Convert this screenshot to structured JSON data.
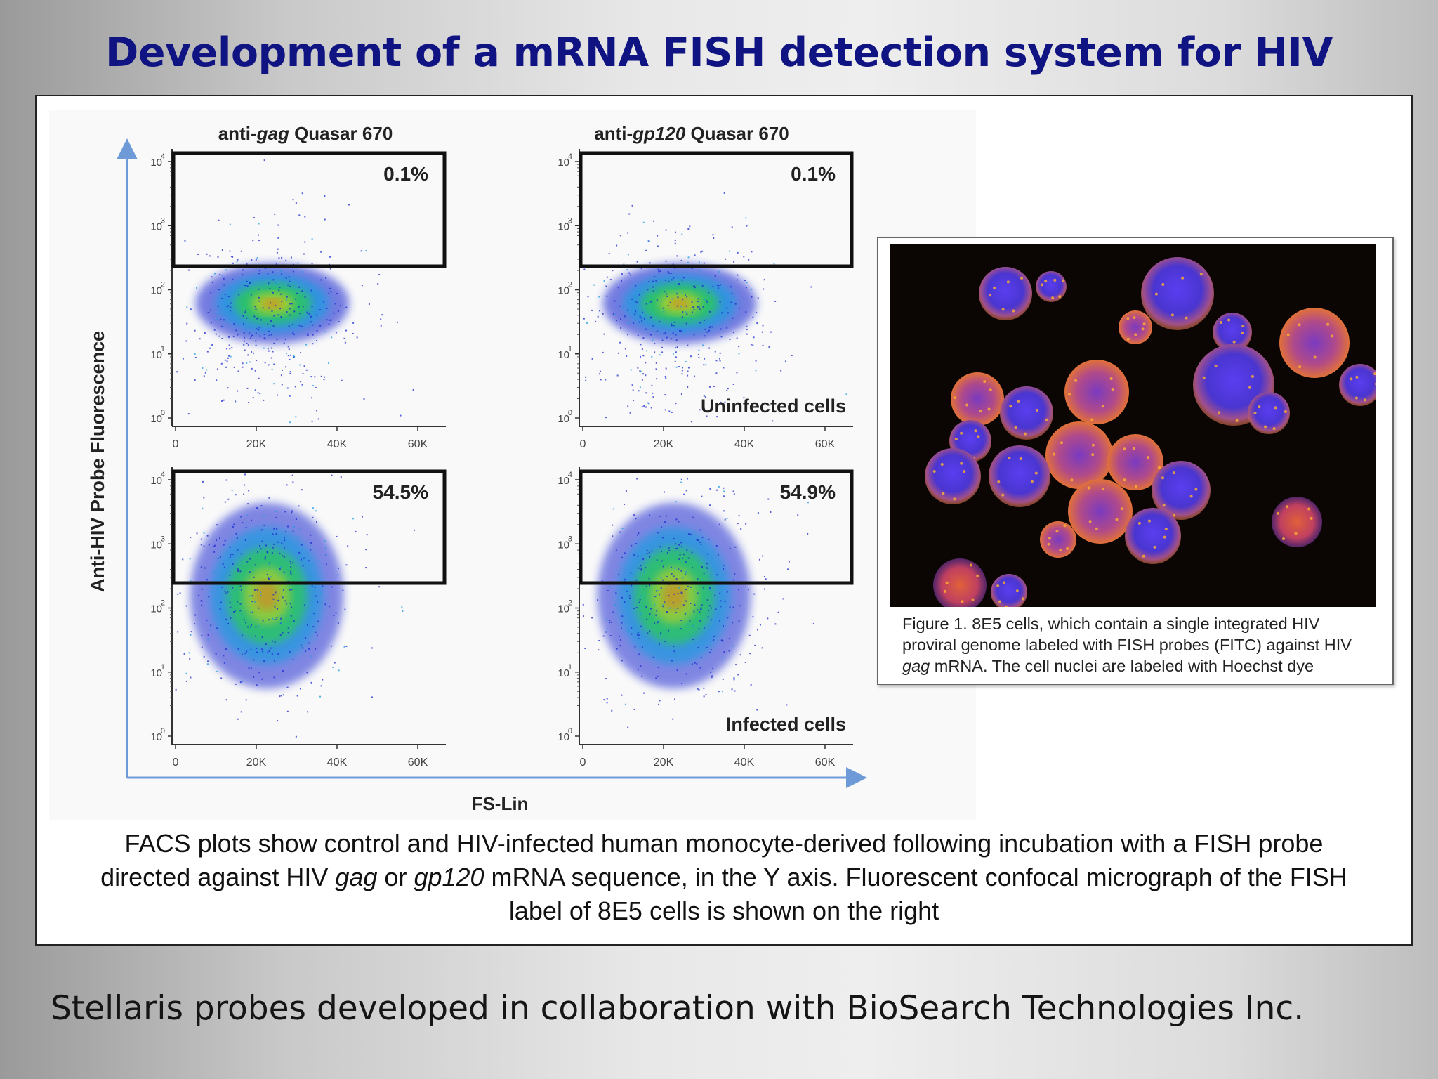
{
  "slide": {
    "title": "Development of a mRNA FISH detection system for HIV",
    "footer": "Stellaris probes developed in collaboration with BioSearch Technologies Inc."
  },
  "facs": {
    "y_axis_label": "Anti-HIV Probe Fluorescence",
    "x_axis_label": "FS-Lin",
    "y_ticks": [
      "10",
      "10",
      "10",
      "10",
      "10"
    ],
    "y_exponents": [
      "0",
      "1",
      "2",
      "3",
      "4"
    ],
    "x_ticks": [
      "0",
      "20K",
      "40K",
      "60K"
    ],
    "columns": [
      {
        "prefix": "anti-",
        "gene": "gag",
        "suffix": " Quasar 670"
      },
      {
        "prefix": "anti-",
        "gene": "gp120",
        "suffix": " Quasar 670"
      }
    ],
    "plots": [
      {
        "row": "uninfected",
        "probe": "gag",
        "gate_percent": "0.1%",
        "label": ""
      },
      {
        "row": "uninfected",
        "probe": "gp120",
        "gate_percent": "0.1%",
        "label": "Uninfected cells"
      },
      {
        "row": "infected",
        "probe": "gag",
        "gate_percent": "54.5%",
        "label": ""
      },
      {
        "row": "infected",
        "probe": "gp120",
        "gate_percent": "54.9%",
        "label": "Infected cells"
      }
    ]
  },
  "micrograph": {
    "caption_line1": "Figure 1. 8E5 cells, which contain a single integrated HIV",
    "caption_line2": "proviral genome labeled with FISH probes (FITC) against HIV",
    "caption_gene": "gag",
    "caption_line3_rest": " mRNA.  The cell nuclei are labeled with Hoechst dye"
  },
  "caption": {
    "part1": "FACS plots show control and HIV-infected human monocyte-derived following incubation with a FISH probe directed against HIV ",
    "gene1": "gag",
    "part2": " or ",
    "gene2": "gp120",
    "part3": " mRNA sequence, in the Y axis.  Fluorescent confocal micrograph of the FISH label  of 8E5 cells is shown on the right"
  },
  "colors": {
    "title": "#101382",
    "axis_arrow": "#6f9ad8",
    "density": [
      "#1c2bd0",
      "#1f9be0",
      "#2ccb55",
      "#c9d21a",
      "#e8731a"
    ]
  }
}
